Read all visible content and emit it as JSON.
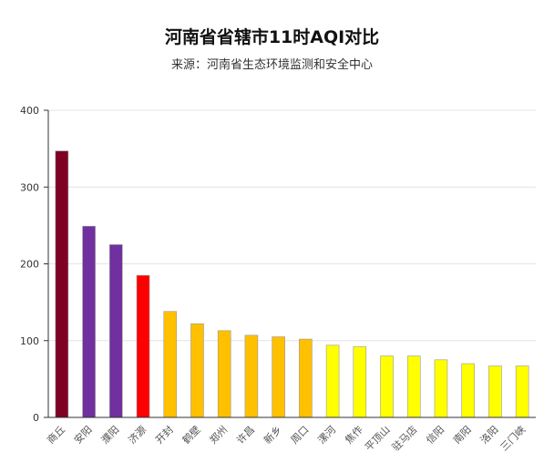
{
  "title": "河南省省辖市11时AQI对比",
  "subtitle": "来源：河南省生态环境监测和安全中心",
  "chart_data": {
    "type": "bar",
    "title": "河南省省辖市11时AQI对比",
    "subtitle": "来源：河南省生态环境监测和安全中心",
    "xlabel": "",
    "ylabel": "",
    "ylim": [
      0,
      400
    ],
    "yticks": [
      0,
      100,
      200,
      300,
      400
    ],
    "grid": true,
    "categories": [
      "商丘",
      "安阳",
      "濮阳",
      "济源",
      "开封",
      "鹤壁",
      "郑州",
      "许昌",
      "新乡",
      "周口",
      "漯河",
      "焦作",
      "平顶山",
      "驻马店",
      "信阳",
      "南阳",
      "洛阳",
      "三门峡"
    ],
    "values": [
      347,
      249,
      225,
      185,
      138,
      122,
      113,
      107,
      105,
      102,
      94,
      92,
      80,
      80,
      75,
      70,
      67,
      67
    ],
    "colors": [
      "#7e0023",
      "#7030a0",
      "#7030a0",
      "#ff0000",
      "#ffc000",
      "#ffc000",
      "#ffc000",
      "#ffc000",
      "#ffc000",
      "#ffc000",
      "#ffff00",
      "#ffff00",
      "#ffff00",
      "#ffff00",
      "#ffff00",
      "#ffff00",
      "#ffff00",
      "#ffff00"
    ]
  }
}
